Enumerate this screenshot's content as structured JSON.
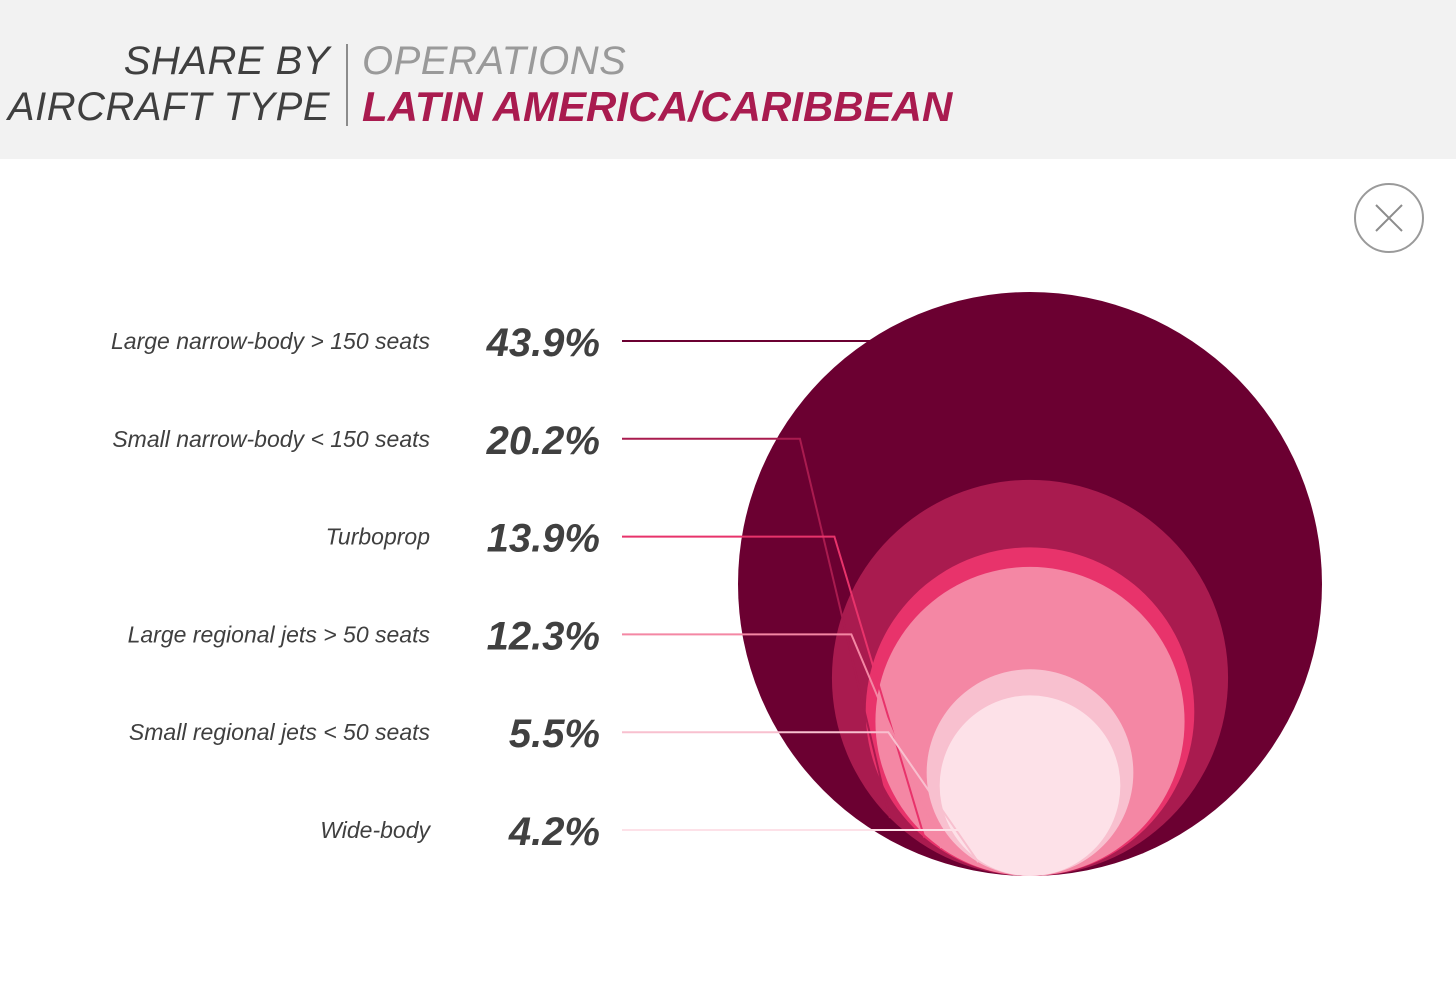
{
  "header": {
    "left_line1": "SHARE BY",
    "left_line2": "AIRCRAFT TYPE",
    "right_sub": "OPERATIONS",
    "right_main": "LATIN AMERICA/CARIBBEAN"
  },
  "close_icon": "close-icon",
  "colors": {
    "header_bg": "#f2f2f2",
    "accent": "#a91b4f"
  },
  "chart_data": {
    "type": "nested-bubble",
    "title": "LATIN AMERICA/CARIBBEAN",
    "unit": "%",
    "categories": [
      "Large narrow-body > 150 seats",
      "Small narrow-body < 150 seats",
      "Turboprop",
      "Large regional jets > 50 seats",
      "Small regional jets < 50 seats",
      "Wide-body"
    ],
    "values": [
      43.9,
      20.2,
      13.9,
      12.3,
      5.5,
      4.2
    ],
    "value_labels": [
      "43.9%",
      "20.2%",
      "13.9%",
      "12.3%",
      "5.5%",
      "4.2%"
    ],
    "colors": [
      "#6b0031",
      "#a91b4f",
      "#e8336b",
      "#f487a4",
      "#f8c0cf",
      "#fde1e8"
    ]
  }
}
